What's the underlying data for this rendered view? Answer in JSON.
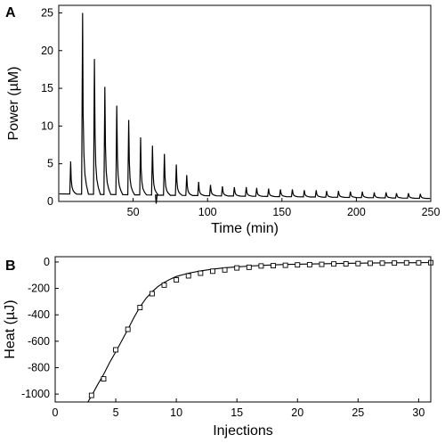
{
  "chart_data": [
    {
      "type": "line",
      "panel_label": "A",
      "xlabel": "Time (min)",
      "ylabel": "Power (µM)",
      "xlim": [
        0,
        250
      ],
      "ylim": [
        0,
        26
      ],
      "xticks": [
        50,
        100,
        150,
        200,
        250
      ],
      "yticks": [
        0,
        5,
        10,
        15,
        20,
        25
      ],
      "grid": false,
      "baseline_start": 1.0,
      "baseline_end": 0.4,
      "artifact": {
        "time": 65.5,
        "min": -0.3
      },
      "injection_peaks": {
        "time": [
          8,
          16,
          24,
          31,
          39,
          47,
          55,
          63,
          71,
          79,
          86,
          94,
          102,
          110,
          118,
          126,
          133,
          141,
          149,
          157,
          165,
          173,
          180,
          188,
          196,
          204,
          212,
          220,
          227,
          235,
          243
        ],
        "height": [
          5.3,
          25.0,
          18.9,
          15.2,
          12.7,
          10.8,
          8.5,
          7.4,
          6.3,
          4.9,
          3.5,
          2.6,
          2.2,
          2.0,
          1.9,
          1.9,
          1.8,
          1.7,
          1.6,
          1.6,
          1.5,
          1.5,
          1.4,
          1.4,
          1.3,
          1.3,
          1.2,
          1.2,
          1.1,
          1.1,
          1.0
        ]
      }
    },
    {
      "type": "scatter",
      "panel_label": "B",
      "xlabel": "Injections",
      "ylabel": "Heat (µJ)",
      "xlim": [
        0,
        31
      ],
      "ylim": [
        -1060,
        40
      ],
      "xticks": [
        0,
        5,
        10,
        15,
        20,
        25,
        30
      ],
      "yticks": [
        0,
        -200,
        -400,
        -600,
        -800,
        -1000
      ],
      "grid": false,
      "series": [
        {
          "kind": "markers",
          "marker": "open-square",
          "x": [
            3,
            4,
            5,
            6,
            7,
            8,
            9,
            10,
            11,
            12,
            13,
            14,
            15,
            16,
            17,
            18,
            19,
            20,
            21,
            22,
            23,
            24,
            25,
            26,
            27,
            28,
            29,
            30,
            31
          ],
          "y": [
            -1010,
            -885,
            -665,
            -510,
            -345,
            -240,
            -175,
            -135,
            -105,
            -85,
            -70,
            -60,
            -45,
            -40,
            -30,
            -28,
            -25,
            -22,
            -20,
            -18,
            -15,
            -14,
            -12,
            -10,
            -9,
            -8,
            -6,
            -6,
            -5
          ]
        },
        {
          "kind": "fit-line",
          "x": [
            2.5,
            3,
            3.5,
            4,
            4.5,
            5,
            5.5,
            6,
            6.5,
            7,
            7.5,
            8,
            8.5,
            9,
            9.5,
            10,
            11,
            12,
            13,
            14,
            15,
            16,
            17,
            18,
            19,
            20,
            22,
            24,
            26,
            28,
            30,
            31
          ],
          "y": [
            -1090,
            -1015,
            -930,
            -850,
            -760,
            -680,
            -595,
            -510,
            -420,
            -340,
            -275,
            -225,
            -185,
            -155,
            -130,
            -110,
            -85,
            -67,
            -54,
            -44,
            -37,
            -31,
            -26,
            -22,
            -19,
            -17,
            -13,
            -10,
            -8,
            -6,
            -5,
            -4
          ]
        }
      ]
    }
  ]
}
